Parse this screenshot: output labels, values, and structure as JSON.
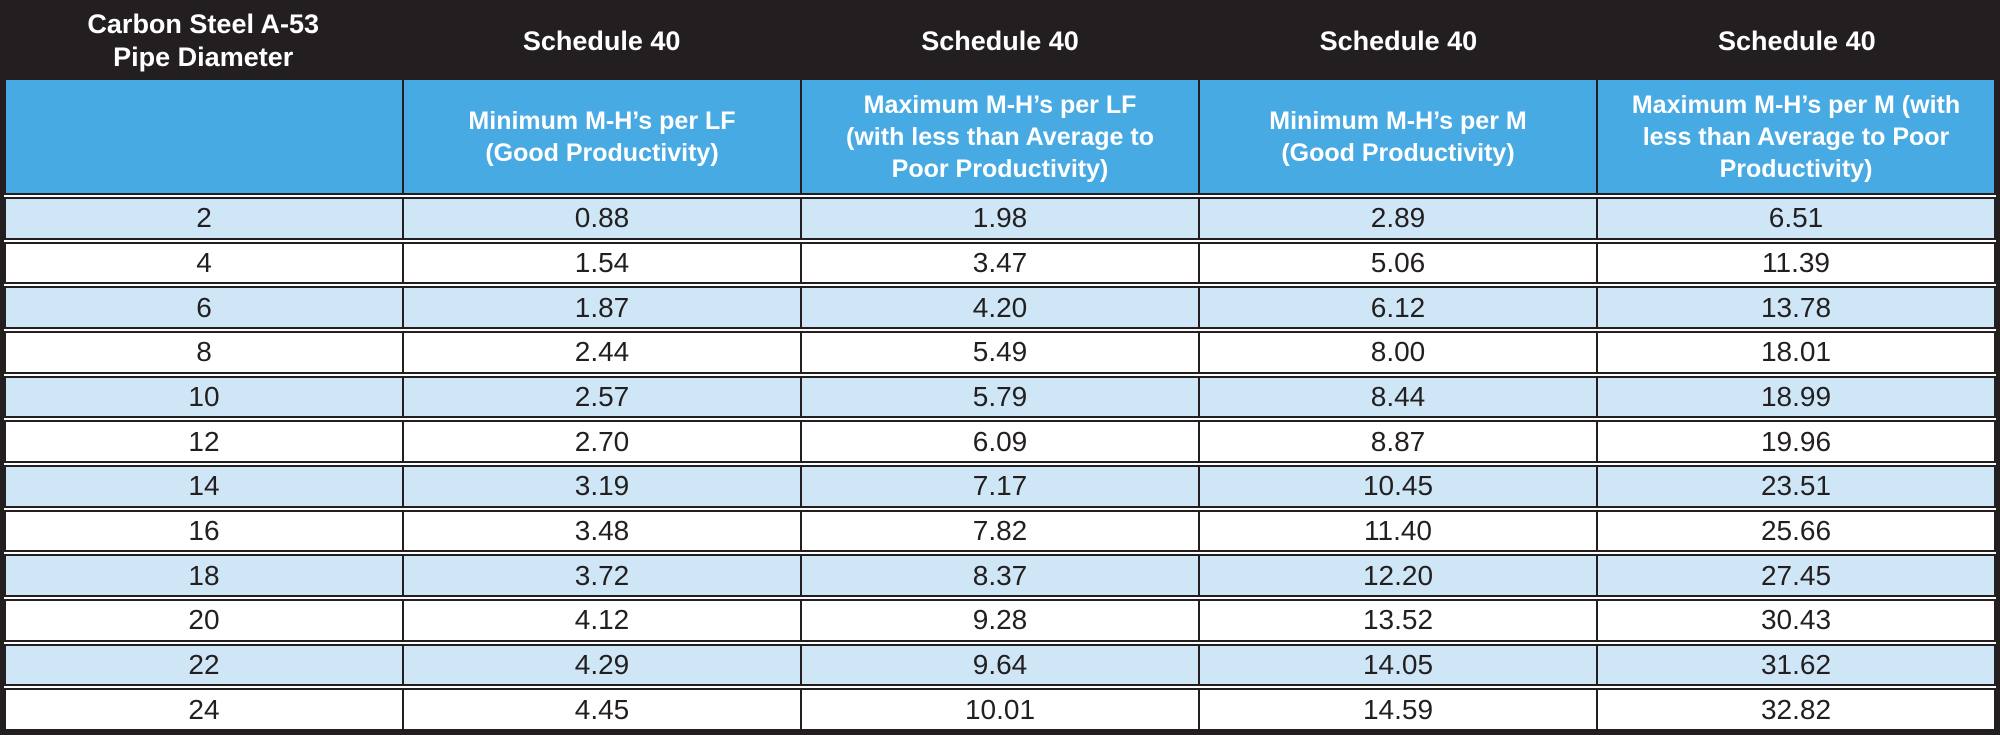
{
  "colors": {
    "header_black": "#231f20",
    "header_blue": "#48aae3",
    "row_light_blue": "#cee6f6",
    "row_white": "#ffffff",
    "border": "#231f20",
    "header_text": "#ffffff",
    "data_text": "#231f20"
  },
  "table": {
    "top_header": {
      "pipe_title_line1": "Carbon Steel A-53",
      "pipe_title_line2": "Pipe Diameter",
      "schedule_labels": [
        "Schedule 40",
        "Schedule 40",
        "Schedule 40",
        "Schedule 40"
      ]
    },
    "sub_headers": [
      "",
      "Minimum M-H’s per LF (Good Productivity)",
      "Maximum M-H’s per LF (with less than Average to Poor Productivity)",
      "Minimum M-H’s per M (Good Productivity)",
      "Maximum M-H’s per M (with less than Average to Poor Productivity)"
    ],
    "rows": [
      [
        "2",
        "0.88",
        "1.98",
        "2.89",
        "6.51"
      ],
      [
        "4",
        "1.54",
        "3.47",
        "5.06",
        "11.39"
      ],
      [
        "6",
        "1.87",
        "4.20",
        "6.12",
        "13.78"
      ],
      [
        "8",
        "2.44",
        "5.49",
        "8.00",
        "18.01"
      ],
      [
        "10",
        "2.57",
        "5.79",
        "8.44",
        "18.99"
      ],
      [
        "12",
        "2.70",
        "6.09",
        "8.87",
        "19.96"
      ],
      [
        "14",
        "3.19",
        "7.17",
        "10.45",
        "23.51"
      ],
      [
        "16",
        "3.48",
        "7.82",
        "11.40",
        "25.66"
      ],
      [
        "18",
        "3.72",
        "8.37",
        "12.20",
        "27.45"
      ],
      [
        "20",
        "4.12",
        "9.28",
        "13.52",
        "30.43"
      ],
      [
        "22",
        "4.29",
        "9.64",
        "14.05",
        "31.62"
      ],
      [
        "24",
        "4.45",
        "10.01",
        "14.59",
        "32.82"
      ]
    ]
  },
  "chart_data": {
    "type": "table",
    "header_row_1": [
      "Carbon Steel A-53 Pipe Diameter",
      "Schedule 40",
      "Schedule 40",
      "Schedule 40",
      "Schedule 40"
    ],
    "header_row_2": [
      "",
      "Minimum M-H’s per LF (Good Productivity)",
      "Maximum M-H’s per LF (with less than Average to Poor Productivity)",
      "Minimum M-H’s per M (Good Productivity)",
      "Maximum M-H’s per M (with less than Average to Poor Productivity)"
    ],
    "rows": [
      [
        2,
        0.88,
        1.98,
        2.89,
        6.51
      ],
      [
        4,
        1.54,
        3.47,
        5.06,
        11.39
      ],
      [
        6,
        1.87,
        4.2,
        6.12,
        13.78
      ],
      [
        8,
        2.44,
        5.49,
        8.0,
        18.01
      ],
      [
        10,
        2.57,
        5.79,
        8.44,
        18.99
      ],
      [
        12,
        2.7,
        6.09,
        8.87,
        19.96
      ],
      [
        14,
        3.19,
        7.17,
        10.45,
        23.51
      ],
      [
        16,
        3.48,
        7.82,
        11.4,
        25.66
      ],
      [
        18,
        3.72,
        8.37,
        12.2,
        27.45
      ],
      [
        20,
        4.12,
        9.28,
        13.52,
        30.43
      ],
      [
        22,
        4.29,
        9.64,
        14.05,
        31.62
      ],
      [
        24,
        4.45,
        10.01,
        14.59,
        32.82
      ]
    ],
    "layout": {
      "zebra_striping": true,
      "first_data_row_shade": "light-blue",
      "all_cells_center_aligned": true
    }
  }
}
